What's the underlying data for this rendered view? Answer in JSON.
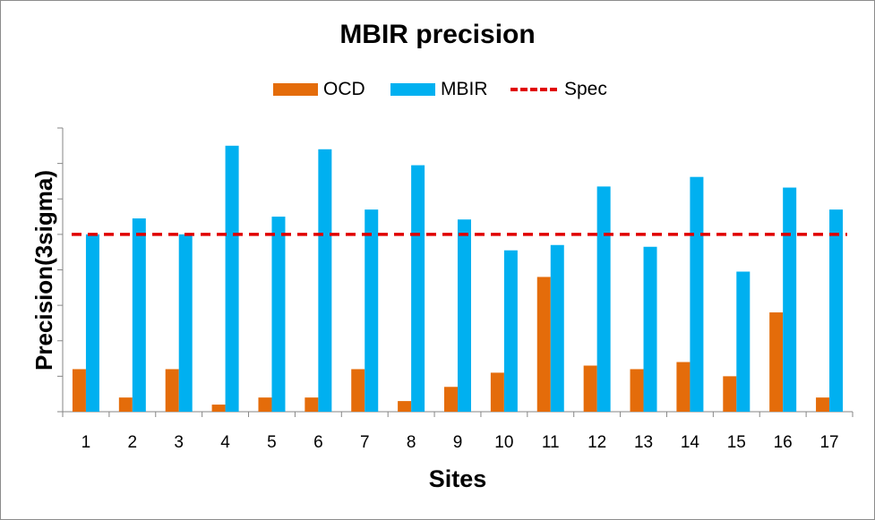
{
  "chart_data": {
    "type": "bar",
    "title": "MBIR precision",
    "xlabel": "Sites",
    "ylabel": "Precision(3sigma)",
    "categories": [
      "1",
      "2",
      "3",
      "4",
      "5",
      "6",
      "7",
      "8",
      "9",
      "10",
      "11",
      "12",
      "13",
      "14",
      "15",
      "16",
      "17"
    ],
    "series": [
      {
        "name": "OCD",
        "color": "#e46c0a",
        "values": [
          1.2,
          0.4,
          1.2,
          0.2,
          0.4,
          0.4,
          1.2,
          0.3,
          0.7,
          1.1,
          3.8,
          1.3,
          1.2,
          1.4,
          1.0,
          2.8,
          0.4
        ]
      },
      {
        "name": "MBIR",
        "color": "#00b0f0",
        "values": [
          5.0,
          5.45,
          5.0,
          7.5,
          5.5,
          7.4,
          5.7,
          6.95,
          5.42,
          4.55,
          4.7,
          6.35,
          4.65,
          6.62,
          3.95,
          6.32,
          5.7
        ]
      }
    ],
    "reference_line": {
      "name": "Spec",
      "value": 5.0,
      "color": "#e00000",
      "style": "dashed"
    },
    "ylim": [
      0,
      8
    ],
    "y_ticks_labeled": false,
    "grid": false,
    "legend_position": "top"
  }
}
